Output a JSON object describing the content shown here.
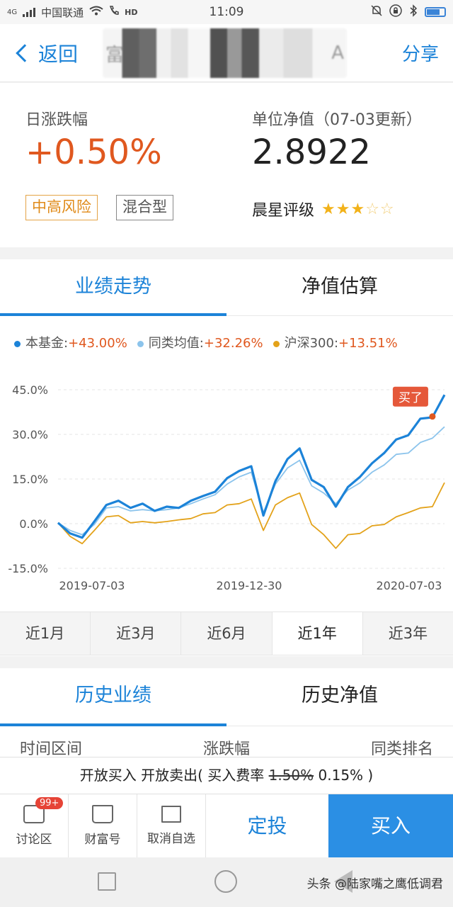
{
  "status_bar": {
    "carrier": "中国联通",
    "net": "4G",
    "hd": "HD",
    "time": "11:09"
  },
  "nav": {
    "back_label": "返回",
    "title_first_char": "富",
    "title_last_char": "A",
    "share_label": "分享"
  },
  "summary": {
    "daily_change_label": "日涨跌幅",
    "daily_change": "+0.50%",
    "nav_label": "单位净值（07-03更新）",
    "nav_value": "2.8922",
    "risk_tag": "中高风险",
    "type_tag": "混合型",
    "rating_label": "晨星评级",
    "rating_stars": 3,
    "rating_max": 5,
    "stars_on": "★★★",
    "stars_off": "☆☆"
  },
  "chart_tabs": [
    "业绩走势",
    "净值估算"
  ],
  "legend": [
    {
      "name": "本基金:",
      "value": "+43.00%",
      "color": "#1c83d8"
    },
    {
      "name": "同类均值:",
      "value": "+32.26%",
      "color": "#8cc4ec"
    },
    {
      "name": "沪深300:",
      "value": "+13.51%",
      "color": "#e3a21a"
    }
  ],
  "chart_data": {
    "type": "line",
    "yticks": [
      "45.0%",
      "30.0%",
      "15.0%",
      "0.0%",
      "-15.0%"
    ],
    "ylim": [
      -15,
      45
    ],
    "xticks": [
      "2019-07-03",
      "2019-12-30",
      "2020-07-03"
    ],
    "annotation": "买了",
    "series": [
      {
        "name": "本基金",
        "color": "#1c83d8",
        "values": [
          0,
          -3,
          -5,
          1,
          6,
          8,
          5,
          7,
          4,
          6,
          5,
          8,
          9,
          11,
          15,
          18,
          19,
          3,
          14,
          22,
          25,
          15,
          12,
          6,
          12,
          16,
          20,
          24,
          28,
          30,
          35,
          36,
          43
        ]
      },
      {
        "name": "同类均值",
        "color": "#8cc4ec",
        "values": [
          0,
          -2,
          -4,
          0,
          5,
          6,
          4,
          5,
          4,
          5,
          5,
          7,
          8,
          10,
          13,
          16,
          17,
          4,
          13,
          19,
          21,
          13,
          10,
          7,
          11,
          14,
          17,
          20,
          23,
          24,
          27,
          29,
          32.26
        ]
      },
      {
        "name": "沪深300",
        "color": "#e3a21a",
        "values": [
          0,
          -4,
          -7,
          -2,
          2,
          3,
          0,
          1,
          0,
          1,
          1,
          2,
          3,
          4,
          6,
          7,
          8,
          -2,
          6,
          9,
          10,
          0,
          -4,
          -8,
          -4,
          -3,
          -1,
          0,
          2,
          4,
          5,
          6,
          13.51
        ]
      }
    ]
  },
  "range_buttons": [
    "近1月",
    "近3月",
    "近6月",
    "近1年",
    "近3年"
  ],
  "range_active": "近1年",
  "history_tabs": [
    "历史业绩",
    "历史净值"
  ],
  "history_columns": [
    "时间区间",
    "涨跌幅",
    "同类排名"
  ],
  "fee": {
    "prefix": "开放买入 开放卖出( 买入费率 ",
    "old_rate": "1.50%",
    "new_rate": " 0.15% )"
  },
  "bottom": {
    "discuss_label": "讨论区",
    "discuss_badge": "99+",
    "fortune_label": "财富号",
    "unfollow_label": "取消自选",
    "sip_label": "定投",
    "buy_label": "买入"
  },
  "watermark": "头条 @陆家嘴之鹰低调君"
}
